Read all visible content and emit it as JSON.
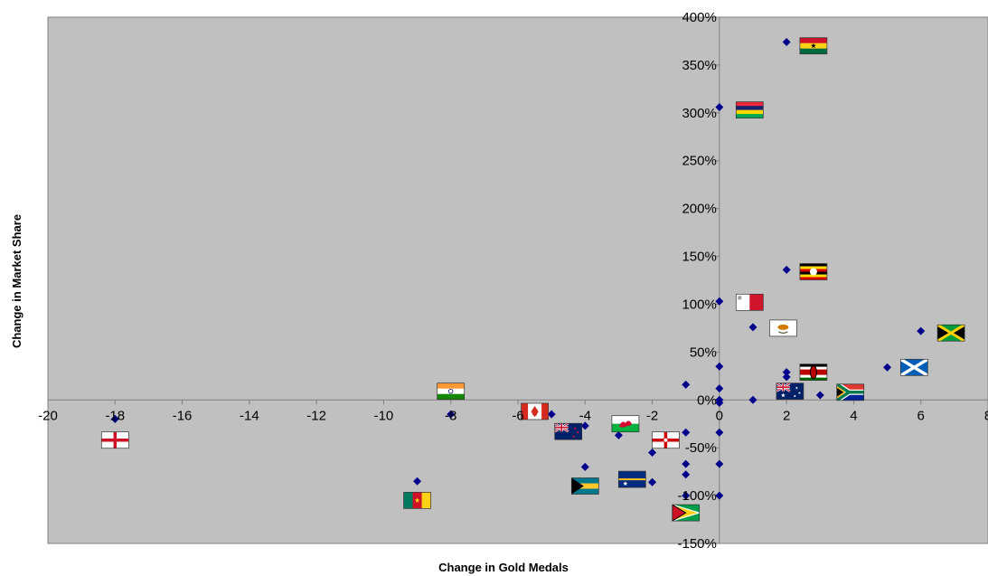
{
  "chart_data": {
    "type": "scatter",
    "title": "",
    "xlabel": "Change in Gold Medals",
    "ylabel": "Change in Market Share",
    "xlim": [
      -20,
      8
    ],
    "ylim": [
      -150,
      400
    ],
    "xticks": [
      -20,
      -18,
      -16,
      -14,
      -12,
      -10,
      -8,
      -6,
      -4,
      -2,
      0,
      2,
      4,
      6,
      8
    ],
    "yticks": [
      -150,
      -100,
      -50,
      0,
      50,
      100,
      150,
      200,
      250,
      300,
      350,
      400
    ],
    "xtick_labels": [
      "-20",
      "-18",
      "-16",
      "-14",
      "-12",
      "-10",
      "-8",
      "-6",
      "-4",
      "-2",
      "0",
      "2",
      "4",
      "6",
      "8"
    ],
    "ytick_labels": [
      "-150%",
      "-100%",
      "-50%",
      "0%",
      "50%",
      "100%",
      "150%",
      "200%",
      "250%",
      "300%",
      "350%",
      "400%"
    ],
    "grid": false,
    "legend": "none",
    "colors": {
      "plot_background": "#c0c0c0",
      "marker": "#00008b",
      "axis": "#808080"
    },
    "marker_shape": "diamond",
    "series": [
      {
        "points": [
          {
            "x": 2,
            "y": 374
          },
          {
            "x": 0,
            "y": 306
          },
          {
            "x": 2,
            "y": 136
          },
          {
            "x": 0,
            "y": 103
          },
          {
            "x": 1,
            "y": 76
          },
          {
            "x": 6,
            "y": 72
          },
          {
            "x": 5,
            "y": 34
          },
          {
            "x": 0,
            "y": 35
          },
          {
            "x": 2,
            "y": 29
          },
          {
            "x": 2,
            "y": 24
          },
          {
            "x": -1,
            "y": 16
          },
          {
            "x": 0,
            "y": 12
          },
          {
            "x": 0,
            "y": 0
          },
          {
            "x": 0,
            "y": -3
          },
          {
            "x": 1,
            "y": 0
          },
          {
            "x": 3,
            "y": 5
          },
          {
            "x": -8,
            "y": -15
          },
          {
            "x": -18,
            "y": -20
          },
          {
            "x": -5,
            "y": -15
          },
          {
            "x": -4,
            "y": -27
          },
          {
            "x": -3,
            "y": -37
          },
          {
            "x": -1,
            "y": -34
          },
          {
            "x": 0,
            "y": -34
          },
          {
            "x": -2,
            "y": -55
          },
          {
            "x": -1,
            "y": -67
          },
          {
            "x": 0,
            "y": -67
          },
          {
            "x": -4,
            "y": -70
          },
          {
            "x": -1,
            "y": -78
          },
          {
            "x": -2,
            "y": -86
          },
          {
            "x": -9,
            "y": -85
          },
          {
            "x": -1,
            "y": -100
          },
          {
            "x": 0,
            "y": -100
          }
        ]
      }
    ],
    "flag_labels": [
      {
        "icon": "ghana-flag-icon",
        "x": 2.8,
        "y": 370
      },
      {
        "icon": "mauritius-flag-icon",
        "x": 0.9,
        "y": 303
      },
      {
        "icon": "uganda-flag-icon",
        "x": 2.8,
        "y": 134
      },
      {
        "icon": "malta-flag-icon",
        "x": 0.9,
        "y": 102
      },
      {
        "icon": "cyprus-flag-icon",
        "x": 1.9,
        "y": 75
      },
      {
        "icon": "jamaica-flag-icon",
        "x": 6.9,
        "y": 70
      },
      {
        "icon": "scotland-flag-icon",
        "x": 5.8,
        "y": 34
      },
      {
        "icon": "kenya-flag-icon",
        "x": 2.8,
        "y": 29
      },
      {
        "icon": "australia-flag-icon",
        "x": 2.1,
        "y": 9
      },
      {
        "icon": "south-africa-flag-icon",
        "x": 3.9,
        "y": 8
      },
      {
        "icon": "india-flag-icon",
        "x": -8,
        "y": 9
      },
      {
        "icon": "canada-flag-icon",
        "x": -5.5,
        "y": -12
      },
      {
        "icon": "new-zealand-flag-icon",
        "x": -4.5,
        "y": -33
      },
      {
        "icon": "wales-flag-icon",
        "x": -2.8,
        "y": -25
      },
      {
        "icon": "northern-ireland-flag-icon",
        "x": -1.6,
        "y": -42
      },
      {
        "icon": "england-flag-icon",
        "x": -18,
        "y": -42
      },
      {
        "icon": "bahamas-flag-icon",
        "x": -4,
        "y": -90
      },
      {
        "icon": "nauru-flag-icon",
        "x": -2.6,
        "y": -83
      },
      {
        "icon": "cameroon-flag-icon",
        "x": -9,
        "y": -105
      },
      {
        "icon": "guyana-flag-icon",
        "x": -1,
        "y": -118
      }
    ]
  }
}
